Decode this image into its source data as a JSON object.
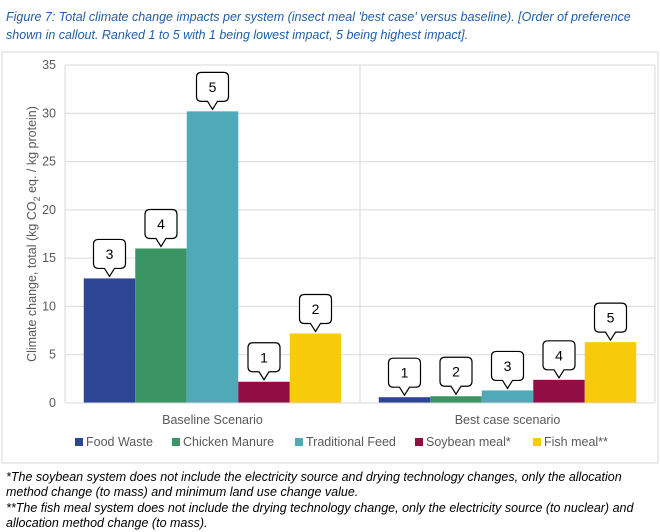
{
  "caption": {
    "line1": "Figure 7: Total climate change impacts per system (insect meal 'best case' versus baseline). [Order of preference",
    "line2": "shown in callout. Ranked 1 to 5 with 1 being lowest impact, 5 being highest impact]."
  },
  "chart_data": {
    "type": "bar",
    "title": "",
    "ylabel_prefix": "Climate change, total (kg CO",
    "ylabel_subscript": "2",
    "ylabel_suffix": " eq. / kg protein)",
    "xlabel": "",
    "ylim": [
      0,
      35
    ],
    "yticks": [
      0,
      5,
      10,
      15,
      20,
      25,
      30,
      35
    ],
    "grid": true,
    "legend_position": "bottom",
    "categories": [
      "Baseline Scenario",
      "Best case scenario"
    ],
    "series": [
      {
        "name": "Food Waste",
        "color": "#2e4495",
        "values": [
          12.9,
          0.6
        ],
        "ranks": [
          "3",
          "1"
        ]
      },
      {
        "name": "Chicken Manure",
        "color": "#3a9463",
        "values": [
          16.0,
          0.7
        ],
        "ranks": [
          "4",
          "2"
        ]
      },
      {
        "name": "Traditional Feed",
        "color": "#4eaab8",
        "values": [
          30.2,
          1.3
        ],
        "ranks": [
          "5",
          "3"
        ]
      },
      {
        "name": "Soybean meal*",
        "color": "#930d45",
        "values": [
          2.2,
          2.4
        ],
        "ranks": [
          "1",
          "4"
        ]
      },
      {
        "name": "Fish meal**",
        "color": "#f7cb09",
        "values": [
          7.2,
          6.3
        ],
        "ranks": [
          "2",
          "5"
        ]
      }
    ]
  },
  "notes": {
    "soybean": "*The soybean system does not include the electricity source and drying technology changes, only the allocation method change (to mass) and minimum land use change value.",
    "fishmeal": "**The fish meal system does not include the drying technology change, only the electricity source (to nuclear) and allocation method change (to mass)."
  }
}
